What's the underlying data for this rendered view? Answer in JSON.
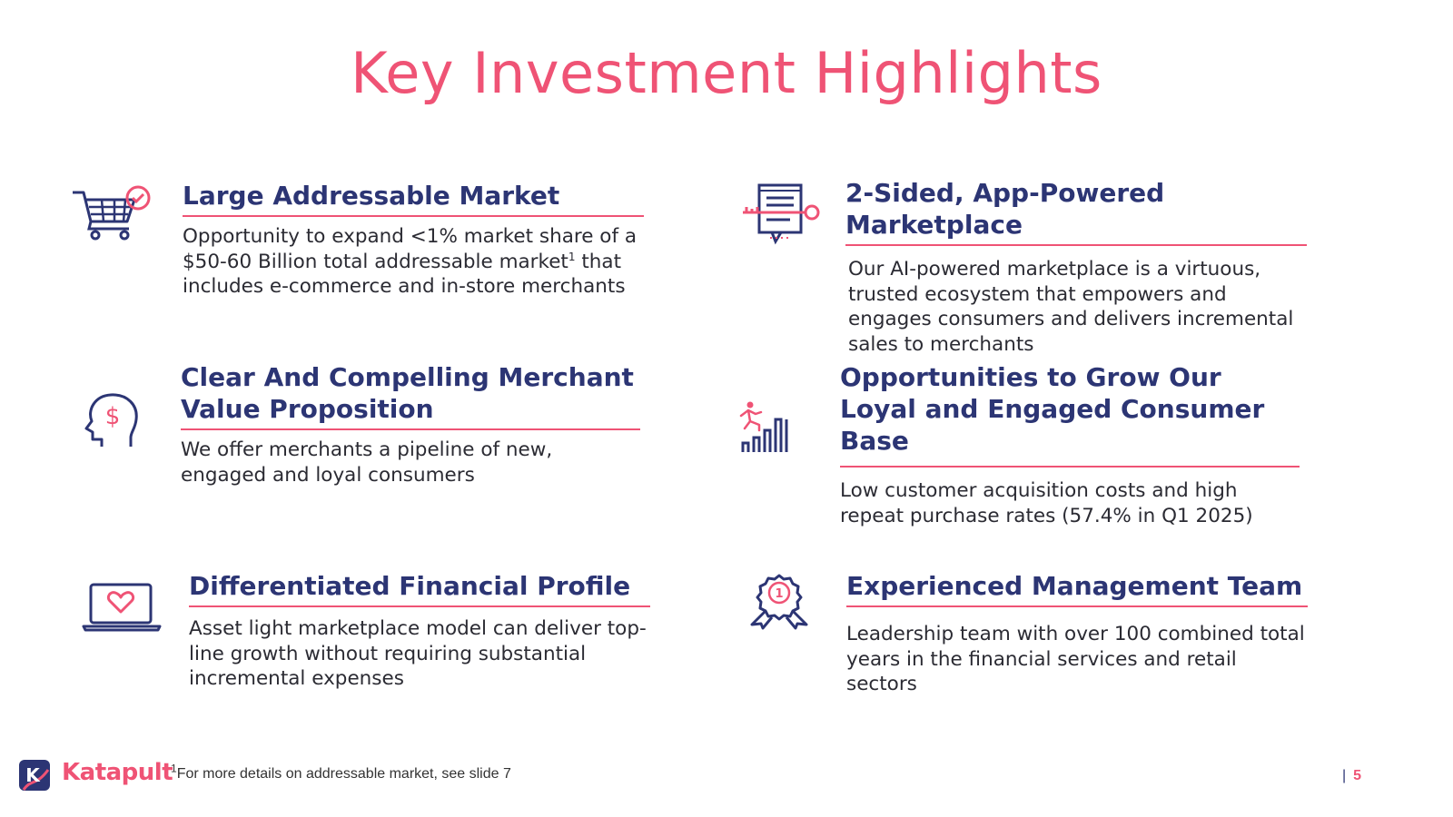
{
  "title": "Key Investment Highlights",
  "colors": {
    "accent": "#ef5375",
    "heading": "#2c3574",
    "text": "#2b2b33"
  },
  "highlights": [
    {
      "icon": "shopping-cart-check-icon",
      "heading": "Large Addressable Market",
      "body_pre": "Opportunity to expand <1% market share of a $50-60 Billion total addressable market",
      "body_sup": "1",
      "body_post": " that includes e-commerce and in-store merchants"
    },
    {
      "icon": "document-key-icon",
      "heading": "2-Sided, App-Powered Marketplace",
      "body": "Our AI-powered marketplace is a virtuous, trusted ecosystem that empowers and engages consumers and delivers incremental sales to merchants"
    },
    {
      "icon": "head-dollar-icon",
      "heading": "Clear And Compelling Merchant Value Proposition",
      "body": "We offer merchants a pipeline of new, engaged and loyal consumers"
    },
    {
      "icon": "growth-runner-icon",
      "heading": "Opportunities to Grow Our Loyal and Engaged Consumer Base",
      "body": "Low customer acquisition costs and high repeat purchase rates (57.4% in Q1 2025)"
    },
    {
      "icon": "laptop-heart-icon",
      "heading": "Differentiated Financial Profile",
      "body": "Asset light marketplace model can deliver top-line growth without requiring substantial incremental expenses"
    },
    {
      "icon": "award-ribbon-icon",
      "heading": "Experienced Management Team",
      "body": "Leadership team with over 100 combined total years in the financial services and retail sectors"
    }
  ],
  "footer": {
    "brand": "Katapult",
    "logo_letter": "K",
    "footnote_sup": "1",
    "footnote": "For more details on addressable market, see slide 7",
    "separator": "|",
    "page_number": "5"
  }
}
